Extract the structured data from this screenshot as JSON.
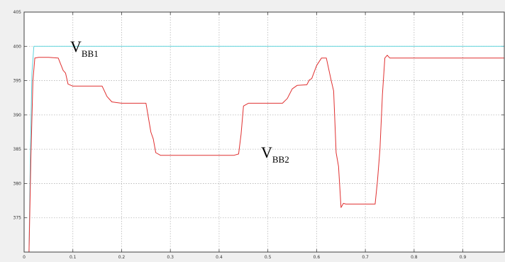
{
  "chart_data": {
    "type": "line",
    "title": "",
    "xlabel": "",
    "ylabel": "",
    "xlim": [
      0,
      0.985
    ],
    "ylim": [
      370,
      405
    ],
    "grid": true,
    "legend": "none",
    "colors": {
      "background_outer": "#f0f0f0",
      "axes_background": "#ffffff",
      "grid": "#b5b5b5",
      "vbb1": "#5fd3dc",
      "vbb2": "#e03030"
    },
    "x_ticks": [
      {
        "value": 0,
        "label": "0"
      },
      {
        "value": 0.1,
        "label": "0.1"
      },
      {
        "value": 0.2,
        "label": "0.2"
      },
      {
        "value": 0.3,
        "label": "0.3"
      },
      {
        "value": 0.4,
        "label": "0.4"
      },
      {
        "value": 0.5,
        "label": "0.5"
      },
      {
        "value": 0.6,
        "label": "0.6"
      },
      {
        "value": 0.7,
        "label": "0.7"
      },
      {
        "value": 0.8,
        "label": "0.8"
      },
      {
        "value": 0.9,
        "label": "0.9"
      }
    ],
    "y_ticks": [
      {
        "value": 375,
        "label": "375"
      },
      {
        "value": 380,
        "label": "380"
      },
      {
        "value": 385,
        "label": "385"
      },
      {
        "value": 390,
        "label": "390"
      },
      {
        "value": 395,
        "label": "395"
      },
      {
        "value": 400,
        "label": "400"
      },
      {
        "value": 405,
        "label": "405"
      }
    ],
    "series": [
      {
        "key": "vbb1",
        "x": [
          0.0,
          0.01,
          0.013,
          0.016,
          0.02,
          0.5,
          0.985
        ],
        "y": [
          370,
          370,
          385,
          396,
          400,
          400,
          400
        ]
      },
      {
        "key": "vbb2",
        "x": [
          0.0,
          0.01,
          0.014,
          0.018,
          0.022,
          0.03,
          0.05,
          0.07,
          0.08,
          0.085,
          0.09,
          0.1,
          0.12,
          0.14,
          0.16,
          0.17,
          0.18,
          0.19,
          0.2,
          0.22,
          0.24,
          0.25,
          0.26,
          0.265,
          0.27,
          0.28,
          0.3,
          0.35,
          0.4,
          0.43,
          0.44,
          0.445,
          0.45,
          0.46,
          0.48,
          0.5,
          0.53,
          0.54,
          0.55,
          0.56,
          0.58,
          0.585,
          0.59,
          0.6,
          0.61,
          0.62,
          0.63,
          0.635,
          0.64,
          0.645,
          0.65,
          0.655,
          0.66,
          0.67,
          0.7,
          0.72,
          0.725,
          0.73,
          0.735,
          0.74,
          0.745,
          0.75,
          0.8,
          0.9,
          0.985
        ],
        "y": [
          370,
          370,
          384,
          395,
          398.3,
          398.4,
          398.4,
          398.3,
          396.5,
          396.1,
          394.5,
          394.2,
          394.2,
          394.2,
          394.2,
          392.7,
          391.9,
          391.8,
          391.7,
          391.7,
          391.7,
          391.7,
          387.5,
          386.5,
          384.5,
          384.1,
          384.1,
          384.1,
          384.1,
          384.1,
          384.3,
          387.2,
          391.3,
          391.7,
          391.7,
          391.7,
          391.7,
          392.4,
          393.8,
          394.3,
          394.4,
          395.1,
          395.3,
          397.2,
          398.3,
          398.3,
          395,
          393.5,
          384.5,
          382.5,
          376.5,
          377.1,
          377,
          377,
          377,
          377,
          380.5,
          385,
          393,
          398.3,
          398.7,
          398.3,
          398.3,
          398.3,
          398.3
        ]
      }
    ],
    "annotations": {
      "vbb1": {
        "main": "V",
        "sub": "BB1"
      },
      "vbb2": {
        "main": "V",
        "sub": "BB2"
      }
    }
  }
}
